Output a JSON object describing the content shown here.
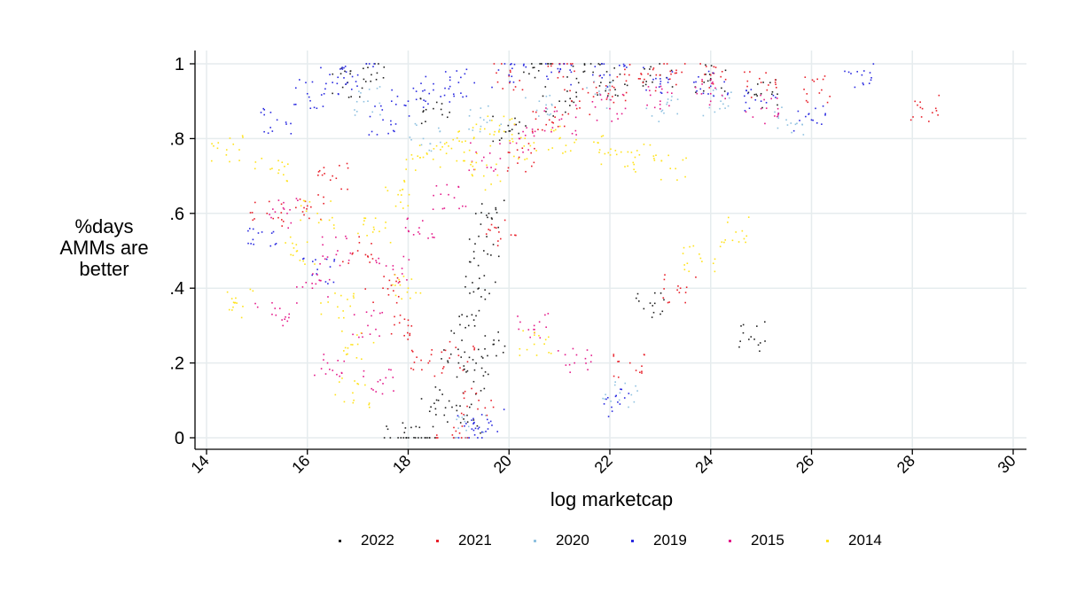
{
  "chart_data": {
    "type": "scatter",
    "xlabel": "log marketcap",
    "ylabel": "%days\nAMMs are\nbetter",
    "xlim": [
      14,
      30
    ],
    "ylim": [
      0,
      1
    ],
    "xticks": [
      "14",
      "16",
      "18",
      "20",
      "22",
      "24",
      "26",
      "28",
      "30"
    ],
    "yticks": [
      "0",
      ".2",
      ".4",
      ".6",
      ".8",
      "1"
    ],
    "grid": true,
    "legend_position": "bottom",
    "series": [
      {
        "name": "2022",
        "color": "#222222",
        "points": [
          [
            17.8,
            0.0
          ],
          [
            18.2,
            0.0
          ],
          [
            18.6,
            0.1
          ],
          [
            19.0,
            0.2
          ],
          [
            19.2,
            0.3
          ],
          [
            19.4,
            0.4
          ],
          [
            19.5,
            0.5
          ],
          [
            19.6,
            0.6
          ],
          [
            19.1,
            0.05
          ],
          [
            19.3,
            0.15
          ],
          [
            19.7,
            0.25
          ],
          [
            20.0,
            0.82
          ],
          [
            21.0,
            0.9
          ],
          [
            22.0,
            0.95
          ],
          [
            23.0,
            0.97
          ],
          [
            24.0,
            0.96
          ],
          [
            25.0,
            0.92
          ],
          [
            18.5,
            0.88
          ],
          [
            17.2,
            0.99
          ],
          [
            16.8,
            0.95
          ],
          [
            22.8,
            0.36
          ],
          [
            24.8,
            0.27
          ],
          [
            21.5,
            0.98
          ],
          [
            20.5,
            0.99
          ]
        ]
      },
      {
        "name": "2021",
        "color": "#e8202a",
        "points": [
          [
            16.5,
            0.7
          ],
          [
            17.0,
            0.5
          ],
          [
            17.5,
            0.4
          ],
          [
            18.0,
            0.3
          ],
          [
            18.4,
            0.2
          ],
          [
            18.9,
            0.0
          ],
          [
            19.4,
            0.1
          ],
          [
            19.8,
            0.55
          ],
          [
            20.2,
            0.75
          ],
          [
            20.8,
            0.85
          ],
          [
            21.4,
            0.9
          ],
          [
            22.0,
            0.93
          ],
          [
            22.6,
            0.96
          ],
          [
            23.2,
            0.98
          ],
          [
            24.0,
            0.97
          ],
          [
            25.0,
            0.95
          ],
          [
            26.2,
            0.93
          ],
          [
            28.2,
            0.88
          ],
          [
            16.0,
            0.62
          ],
          [
            15.2,
            0.6
          ],
          [
            19.0,
            0.22
          ],
          [
            20.0,
            0.97
          ],
          [
            21.0,
            1.0
          ],
          [
            22.4,
            0.2
          ],
          [
            23.4,
            0.4
          ]
        ]
      },
      {
        "name": "2020",
        "color": "#8fc1e0",
        "points": [
          [
            17.2,
            0.9
          ],
          [
            18.3,
            0.8
          ],
          [
            19.5,
            0.85
          ],
          [
            20.6,
            0.9
          ],
          [
            21.8,
            0.92
          ],
          [
            22.2,
            0.12
          ],
          [
            23.0,
            0.88
          ],
          [
            24.2,
            0.9
          ],
          [
            25.5,
            0.85
          ],
          [
            19.2,
            0.03
          ]
        ]
      },
      {
        "name": "2019",
        "color": "#2a2ae0",
        "points": [
          [
            15.4,
            0.85
          ],
          [
            16.0,
            0.92
          ],
          [
            16.5,
            0.95
          ],
          [
            17.0,
            0.97
          ],
          [
            17.5,
            0.85
          ],
          [
            18.0,
            0.9
          ],
          [
            18.5,
            0.93
          ],
          [
            19.0,
            0.95
          ],
          [
            19.3,
            0.02
          ],
          [
            19.6,
            0.04
          ],
          [
            20.0,
            0.97
          ],
          [
            21.0,
            0.98
          ],
          [
            22.0,
            0.97
          ],
          [
            23.0,
            0.96
          ],
          [
            24.0,
            0.94
          ],
          [
            25.0,
            0.9
          ],
          [
            26.0,
            0.85
          ],
          [
            27.0,
            0.97
          ],
          [
            15.1,
            0.55
          ],
          [
            16.2,
            0.45
          ],
          [
            22.2,
            0.09
          ]
        ]
      },
      {
        "name": "2015",
        "color": "#e41a8a",
        "points": [
          [
            15.6,
            0.6
          ],
          [
            16.1,
            0.4
          ],
          [
            16.6,
            0.5
          ],
          [
            17.2,
            0.3
          ],
          [
            17.7,
            0.45
          ],
          [
            18.2,
            0.55
          ],
          [
            18.8,
            0.65
          ],
          [
            19.5,
            0.75
          ],
          [
            20.2,
            0.8
          ],
          [
            21.0,
            0.85
          ],
          [
            22.0,
            0.88
          ],
          [
            23.0,
            0.9
          ],
          [
            24.0,
            0.92
          ],
          [
            25.0,
            0.88
          ],
          [
            15.3,
            0.33
          ],
          [
            16.4,
            0.2
          ],
          [
            17.4,
            0.15
          ],
          [
            20.5,
            0.3
          ],
          [
            21.3,
            0.2
          ]
        ]
      },
      {
        "name": "2014",
        "color": "#ffe21a",
        "points": [
          [
            14.4,
            0.77
          ],
          [
            14.6,
            0.36
          ],
          [
            15.3,
            0.72
          ],
          [
            15.8,
            0.5
          ],
          [
            16.2,
            0.6
          ],
          [
            16.6,
            0.35
          ],
          [
            16.9,
            0.12
          ],
          [
            17.3,
            0.55
          ],
          [
            17.8,
            0.65
          ],
          [
            18.3,
            0.75
          ],
          [
            18.8,
            0.78
          ],
          [
            19.3,
            0.8
          ],
          [
            19.8,
            0.82
          ],
          [
            20.3,
            0.78
          ],
          [
            21.0,
            0.8
          ],
          [
            21.8,
            0.77
          ],
          [
            22.5,
            0.75
          ],
          [
            23.2,
            0.72
          ],
          [
            23.8,
            0.48
          ],
          [
            24.5,
            0.55
          ],
          [
            20.5,
            0.25
          ],
          [
            19.5,
            0.7
          ],
          [
            18.0,
            0.4
          ],
          [
            17.0,
            0.25
          ]
        ]
      }
    ]
  }
}
